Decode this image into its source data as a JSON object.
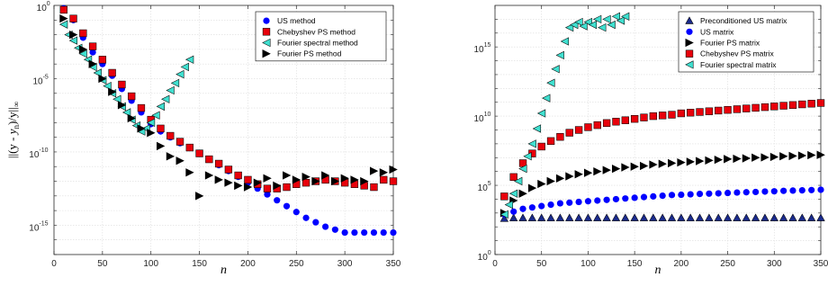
{
  "chart_data": [
    {
      "type": "scatter",
      "xlabel": "n",
      "ylabel": "‖(y − ỹₙ)/y‖∞",
      "ylabel_display": {
        "pre": "||(y - ",
        "tilde": "y",
        "sub": "n",
        "post": ")/y||",
        "inf": "∞"
      },
      "xlim": [
        0,
        350
      ],
      "ylim_log10": [
        -17,
        0
      ],
      "yscale": "log",
      "x_ticks": [
        0,
        50,
        100,
        150,
        200,
        250,
        300,
        350
      ],
      "x_tick_labels": [
        "0",
        "50",
        "100",
        "150",
        "200",
        "250",
        "300",
        "350"
      ],
      "y_ticks_log10": [
        0,
        -5,
        -10,
        -15
      ],
      "y_tick_labels": [
        {
          "base": "10",
          "exp": "0"
        },
        {
          "base": "10",
          "exp": "-5"
        },
        {
          "base": "10",
          "exp": "-10"
        },
        {
          "base": "10",
          "exp": "-15"
        }
      ],
      "grid": true,
      "legend_position": "top-right",
      "series": [
        {
          "name": "US method",
          "marker": "circle",
          "color": "#0000ff",
          "x": [
            10,
            20,
            30,
            40,
            50,
            60,
            70,
            80,
            90,
            100,
            110,
            120,
            130,
            140,
            150,
            160,
            170,
            180,
            190,
            200,
            210,
            220,
            230,
            240,
            250,
            260,
            270,
            280,
            290,
            300,
            310,
            320,
            330,
            340,
            350
          ],
          "y_log10": [
            -0.2,
            -1.0,
            -2.2,
            -3.2,
            -4.0,
            -4.8,
            -5.7,
            -6.5,
            -7.3,
            -8.1,
            -8.6,
            -9.0,
            -9.4,
            -9.7,
            -10.1,
            -10.5,
            -10.9,
            -11.3,
            -11.7,
            -12.1,
            -12.5,
            -12.9,
            -13.3,
            -13.7,
            -14.1,
            -14.5,
            -14.8,
            -15.1,
            -15.3,
            -15.5,
            -15.5,
            -15.5,
            -15.5,
            -15.5,
            -15.5
          ]
        },
        {
          "name": "Chebyshev PS method",
          "marker": "square",
          "color": "#e8000b",
          "x": [
            10,
            20,
            30,
            40,
            50,
            60,
            70,
            80,
            90,
            100,
            110,
            120,
            130,
            140,
            150,
            160,
            170,
            180,
            190,
            200,
            210,
            220,
            230,
            240,
            250,
            260,
            270,
            280,
            290,
            300,
            310,
            320,
            330,
            340,
            350
          ],
          "y_log10": [
            -0.3,
            -0.9,
            -1.9,
            -2.8,
            -3.7,
            -4.6,
            -5.4,
            -6.2,
            -7.0,
            -7.8,
            -8.4,
            -8.9,
            -9.3,
            -9.7,
            -10.1,
            -10.5,
            -10.8,
            -11.2,
            -11.6,
            -11.9,
            -12.2,
            -12.5,
            -12.5,
            -12.4,
            -12.2,
            -12.1,
            -12.0,
            -11.9,
            -12.0,
            -12.1,
            -12.2,
            -12.3,
            -12.4,
            -11.9,
            -12.0
          ]
        },
        {
          "name": "Fourier spectral method",
          "marker": "triangle-left",
          "color": "#40e0d0",
          "x": [
            10,
            15,
            20,
            25,
            30,
            35,
            40,
            45,
            50,
            55,
            60,
            65,
            70,
            75,
            80,
            85,
            90,
            95,
            100,
            105,
            110,
            115,
            120,
            125,
            130,
            135,
            140
          ],
          "y_log10": [
            -1.3,
            -2.0,
            -2.4,
            -2.9,
            -3.3,
            -3.7,
            -4.2,
            -4.6,
            -5.1,
            -5.5,
            -6.0,
            -6.4,
            -6.9,
            -7.3,
            -7.8,
            -8.2,
            -8.6,
            -8.4,
            -8.0,
            -7.5,
            -6.9,
            -6.4,
            -5.8,
            -5.3,
            -4.7,
            -4.2,
            -3.7
          ]
        },
        {
          "name": "Fourier PS method",
          "marker": "triangle-right",
          "color": "#000000",
          "x": [
            10,
            20,
            30,
            40,
            50,
            60,
            70,
            80,
            90,
            100,
            110,
            120,
            130,
            140,
            150,
            160,
            170,
            180,
            190,
            200,
            210,
            220,
            230,
            240,
            250,
            260,
            270,
            280,
            290,
            300,
            310,
            320,
            330,
            340,
            350
          ],
          "y_log10": [
            -0.9,
            -2.0,
            -3.0,
            -4.0,
            -5.0,
            -5.9,
            -6.8,
            -7.7,
            -8.4,
            -8.7,
            -9.6,
            -10.3,
            -10.6,
            -11.4,
            -13.0,
            -11.6,
            -11.9,
            -12.1,
            -12.3,
            -12.4,
            -12.1,
            -11.8,
            -12.3,
            -11.6,
            -11.9,
            -11.7,
            -12.0,
            -11.6,
            -12.0,
            -11.8,
            -11.9,
            -12.0,
            -11.3,
            -11.4,
            -11.2
          ]
        }
      ]
    },
    {
      "type": "scatter",
      "xlabel": "n",
      "ylabel": "",
      "xlim": [
        0,
        350
      ],
      "ylim_log10": [
        0,
        18
      ],
      "yscale": "log",
      "x_ticks": [
        0,
        50,
        100,
        150,
        200,
        250,
        300,
        350
      ],
      "x_tick_labels": [
        "0",
        "50",
        "100",
        "150",
        "200",
        "250",
        "300",
        "350"
      ],
      "y_ticks_log10": [
        0,
        5,
        10,
        15
      ],
      "y_tick_labels": [
        {
          "base": "10",
          "exp": "0"
        },
        {
          "base": "10",
          "exp": "5"
        },
        {
          "base": "10",
          "exp": "10"
        },
        {
          "base": "10",
          "exp": "15"
        }
      ],
      "grid": true,
      "legend_position": "top-right",
      "series": [
        {
          "name": "Preconditioned US matrix",
          "marker": "triangle-up",
          "color": "#1a2a8c",
          "x": [
            10,
            20,
            30,
            40,
            50,
            60,
            70,
            80,
            90,
            100,
            110,
            120,
            130,
            140,
            150,
            160,
            170,
            180,
            190,
            200,
            210,
            220,
            230,
            240,
            250,
            260,
            270,
            280,
            290,
            300,
            310,
            320,
            330,
            340,
            350
          ],
          "y_log10": [
            2.6,
            2.65,
            2.65,
            2.65,
            2.65,
            2.65,
            2.65,
            2.65,
            2.65,
            2.65,
            2.65,
            2.65,
            2.65,
            2.65,
            2.65,
            2.65,
            2.65,
            2.65,
            2.65,
            2.65,
            2.65,
            2.65,
            2.65,
            2.65,
            2.65,
            2.65,
            2.65,
            2.65,
            2.65,
            2.65,
            2.65,
            2.65,
            2.65,
            2.65,
            2.65
          ]
        },
        {
          "name": "US matrix",
          "marker": "circle",
          "color": "#0000ff",
          "x": [
            10,
            20,
            30,
            40,
            50,
            60,
            70,
            80,
            90,
            100,
            110,
            120,
            130,
            140,
            150,
            160,
            170,
            180,
            190,
            200,
            210,
            220,
            230,
            240,
            250,
            260,
            270,
            280,
            290,
            300,
            310,
            320,
            330,
            340,
            350
          ],
          "y_log10": [
            2.9,
            3.1,
            3.3,
            3.4,
            3.5,
            3.6,
            3.7,
            3.75,
            3.8,
            3.85,
            3.9,
            3.95,
            4.0,
            4.05,
            4.1,
            4.15,
            4.2,
            4.25,
            4.3,
            4.32,
            4.35,
            4.38,
            4.4,
            4.42,
            4.45,
            4.48,
            4.5,
            4.52,
            4.55,
            4.57,
            4.6,
            4.62,
            4.64,
            4.66,
            4.68
          ]
        },
        {
          "name": "Fourier PS matrix",
          "marker": "triangle-right",
          "color": "#000000",
          "x": [
            10,
            20,
            30,
            40,
            50,
            60,
            70,
            80,
            90,
            100,
            110,
            120,
            130,
            140,
            150,
            160,
            170,
            180,
            190,
            200,
            210,
            220,
            230,
            240,
            250,
            260,
            270,
            280,
            290,
            300,
            310,
            320,
            330,
            340,
            350
          ],
          "y_log10": [
            3.0,
            3.9,
            4.4,
            4.8,
            5.1,
            5.3,
            5.5,
            5.65,
            5.8,
            5.9,
            6.0,
            6.1,
            6.2,
            6.3,
            6.35,
            6.4,
            6.5,
            6.55,
            6.6,
            6.65,
            6.7,
            6.75,
            6.8,
            6.85,
            6.9,
            6.92,
            6.95,
            7.0,
            7.02,
            7.05,
            7.1,
            7.12,
            7.15,
            7.18,
            7.2
          ]
        },
        {
          "name": "Chebyshev PS matrix",
          "marker": "square",
          "color": "#e8000b",
          "x": [
            10,
            20,
            30,
            40,
            50,
            60,
            70,
            80,
            90,
            100,
            110,
            120,
            130,
            140,
            150,
            160,
            170,
            180,
            190,
            200,
            210,
            220,
            230,
            240,
            250,
            260,
            270,
            280,
            290,
            300,
            310,
            320,
            330,
            340,
            350
          ],
          "y_log10": [
            4.2,
            5.6,
            6.6,
            7.3,
            7.8,
            8.2,
            8.5,
            8.8,
            9.0,
            9.2,
            9.35,
            9.5,
            9.6,
            9.7,
            9.8,
            9.9,
            10.0,
            10.05,
            10.1,
            10.2,
            10.25,
            10.3,
            10.35,
            10.4,
            10.45,
            10.5,
            10.55,
            10.6,
            10.65,
            10.7,
            10.75,
            10.8,
            10.85,
            10.9,
            10.95
          ]
        },
        {
          "name": "Fourier spectral matrix",
          "marker": "triangle-left",
          "color": "#40e0d0",
          "x": [
            10,
            15,
            20,
            25,
            30,
            35,
            40,
            45,
            50,
            55,
            60,
            65,
            70,
            75,
            80,
            85,
            90,
            95,
            100,
            105,
            110,
            115,
            120,
            125,
            130,
            135,
            140
          ],
          "y_log10": [
            2.9,
            3.6,
            4.4,
            5.3,
            6.2,
            7.1,
            8.0,
            9.1,
            10.2,
            11.3,
            12.4,
            13.4,
            14.4,
            15.4,
            16.4,
            16.6,
            16.8,
            16.5,
            16.8,
            16.6,
            17.0,
            16.4,
            17.0,
            16.6,
            17.2,
            16.9,
            17.2
          ]
        }
      ]
    }
  ]
}
